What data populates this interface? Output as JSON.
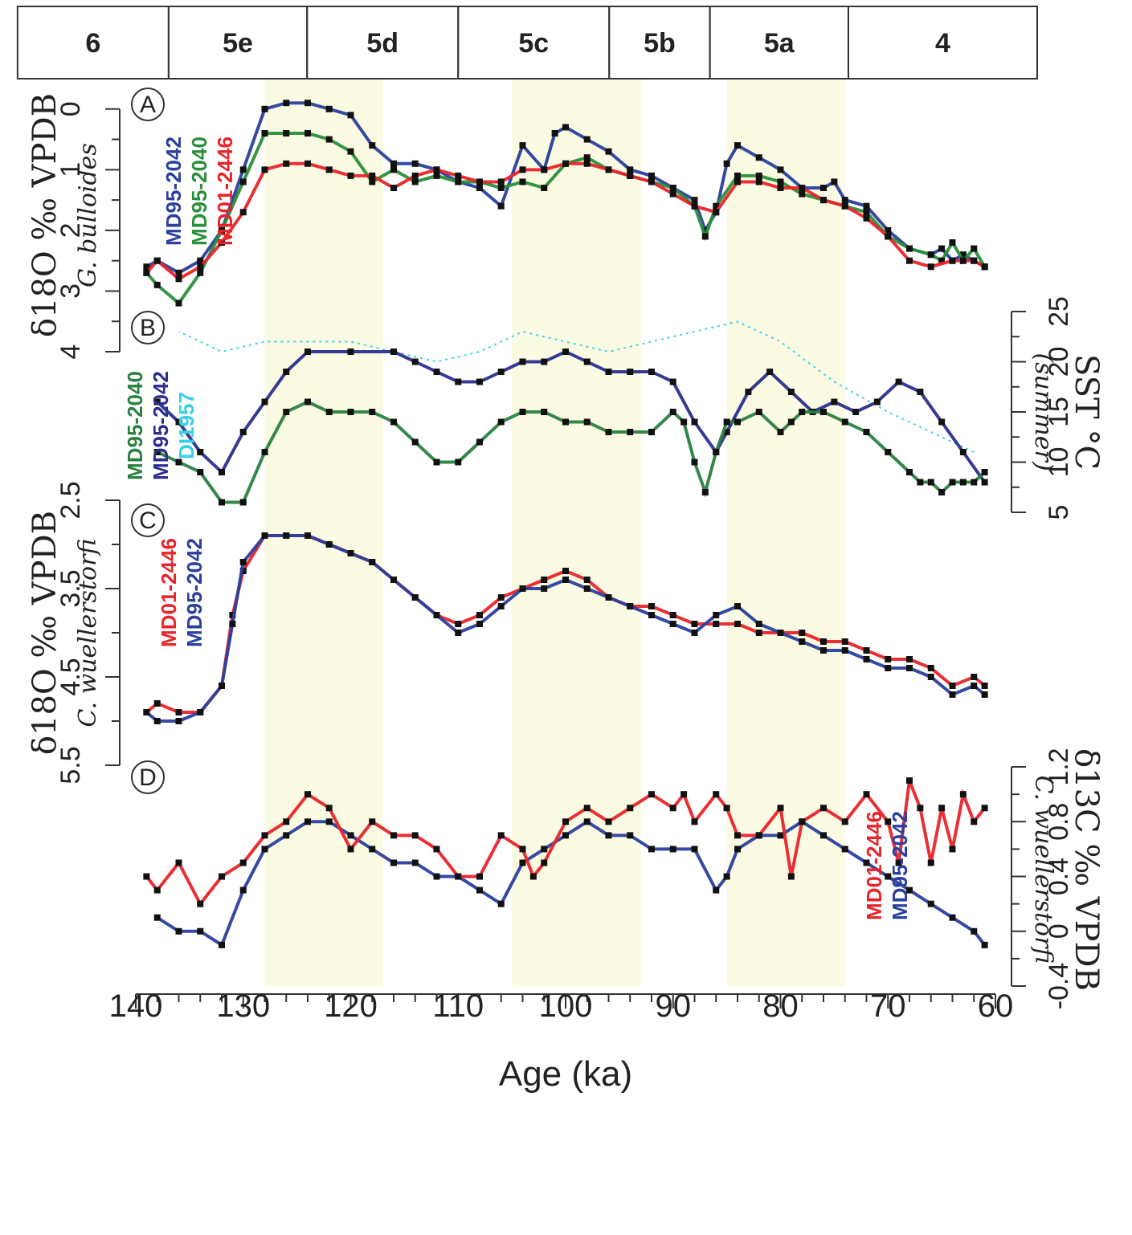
{
  "chart_data": {
    "type": "line",
    "shared_x": {
      "label": "Age (ka)",
      "ticks": [
        60,
        70,
        80,
        90,
        100,
        110,
        120,
        130,
        140
      ],
      "range": [
        60,
        140
      ]
    },
    "marine_isotope_stages": [
      {
        "label": "4",
        "from": 59,
        "to": 74,
        "shaded": false
      },
      {
        "label": "5a",
        "from": 74,
        "to": 85,
        "shaded": true
      },
      {
        "label": "5b",
        "from": 85,
        "to": 93,
        "shaded": false
      },
      {
        "label": "5c",
        "from": 93,
        "to": 105,
        "shaded": true
      },
      {
        "label": "5d",
        "from": 105,
        "to": 117,
        "shaded": false
      },
      {
        "label": "5e",
        "from": 117,
        "to": 128,
        "shaded": true
      },
      {
        "label": "6",
        "from": 128,
        "to": 140,
        "shaded": false
      }
    ],
    "panels": [
      {
        "id": "A",
        "ylabel": "δ18O ‰ VPDB",
        "ylabel_sub": "G. bulloides",
        "ylim": [
          4,
          -0.5
        ],
        "yticks": [
          0,
          1,
          2,
          3,
          4
        ],
        "series": [
          {
            "name": "MD95-2042",
            "color": "#2a3f9e",
            "x": [
              61,
              62,
              63,
              64,
              65,
              66,
              68,
              70,
              72,
              74,
              75,
              76,
              78,
              80,
              82,
              84,
              85,
              86,
              87,
              88,
              90,
              92,
              94,
              96,
              98,
              100,
              101,
              102,
              104,
              106,
              108,
              110,
              112,
              114,
              116,
              118,
              120,
              122,
              124,
              126,
              128,
              130,
              132,
              134,
              136,
              138,
              139
            ],
            "values": [
              2.6,
              2.5,
              2.4,
              2.5,
              2.3,
              2.4,
              2.3,
              2.0,
              1.6,
              1.5,
              1.2,
              1.3,
              1.3,
              1.0,
              0.8,
              0.6,
              0.9,
              1.7,
              2.0,
              1.5,
              1.3,
              1.1,
              1.0,
              0.7,
              0.5,
              0.3,
              0.4,
              1.0,
              0.6,
              1.6,
              1.3,
              1.2,
              1.0,
              0.9,
              0.9,
              0.6,
              0.1,
              0.0,
              -0.1,
              -0.1,
              0.0,
              1.0,
              2.0,
              2.5,
              2.7,
              2.5,
              2.6
            ]
          },
          {
            "name": "MD95-2040",
            "color": "#2a8f3a",
            "x": [
              61,
              62,
              63,
              64,
              65,
              66,
              68,
              70,
              72,
              74,
              76,
              78,
              80,
              82,
              84,
              86,
              87,
              88,
              90,
              92,
              94,
              96,
              98,
              100,
              102,
              104,
              106,
              108,
              110,
              112,
              114,
              116,
              118,
              120,
              122,
              124,
              126,
              128,
              130,
              132,
              134,
              136,
              138,
              139
            ],
            "values": [
              2.6,
              2.3,
              2.5,
              2.2,
              2.5,
              2.4,
              2.3,
              2.1,
              1.7,
              1.6,
              1.5,
              1.4,
              1.2,
              1.1,
              1.1,
              1.6,
              2.1,
              1.6,
              1.3,
              1.2,
              1.1,
              1.0,
              0.8,
              0.9,
              1.3,
              1.2,
              1.3,
              1.2,
              1.2,
              1.1,
              1.2,
              1.0,
              1.2,
              0.7,
              0.5,
              0.4,
              0.4,
              0.4,
              1.2,
              2.0,
              2.7,
              3.2,
              2.9,
              2.7
            ]
          },
          {
            "name": "MD01-2446",
            "color": "#e8242a",
            "x": [
              61,
              62,
              63,
              64,
              66,
              68,
              70,
              72,
              74,
              76,
              78,
              80,
              82,
              84,
              86,
              88,
              90,
              92,
              94,
              96,
              98,
              100,
              102,
              104,
              106,
              108,
              110,
              112,
              114,
              116,
              118,
              120,
              122,
              124,
              126,
              128,
              130,
              132,
              134,
              136,
              138,
              139
            ],
            "values": [
              2.6,
              2.5,
              2.5,
              2.5,
              2.6,
              2.5,
              2.1,
              1.8,
              1.6,
              1.5,
              1.3,
              1.3,
              1.2,
              1.2,
              1.7,
              1.6,
              1.4,
              1.2,
              1.1,
              1.0,
              0.9,
              0.9,
              1.0,
              1.0,
              1.2,
              1.2,
              1.1,
              1.0,
              1.1,
              1.3,
              1.1,
              1.1,
              1.0,
              0.9,
              0.9,
              1.0,
              1.7,
              2.2,
              2.6,
              2.8,
              2.5,
              2.7
            ]
          }
        ]
      },
      {
        "id": "B",
        "ylabel": "SST °C",
        "ylabel_sub": "(summer)",
        "ylim": [
          5,
          25
        ],
        "yticks": [
          5,
          10,
          15,
          20,
          25
        ],
        "series": [
          {
            "name": "DI1957",
            "color": "#35d0e8",
            "x": [
              62,
              66,
              70,
              75,
              80,
              84,
              88,
              92,
              96,
              100,
              104,
              108,
              112,
              116,
              120,
              124,
              128,
              132,
              136
            ],
            "values": [
              11,
              13,
              15,
              18,
              22,
              24,
              23,
              22,
              21,
              22,
              23,
              21,
              20,
              21,
              22,
              22,
              22,
              21,
              23
            ]
          },
          {
            "name": "MD95-2042",
            "color": "#2a2f8e",
            "x": [
              61,
              63,
              65,
              67,
              69,
              71,
              73,
              75,
              77,
              79,
              81,
              83,
              85,
              86,
              88,
              90,
              92,
              94,
              96,
              98,
              100,
              102,
              104,
              106,
              108,
              110,
              112,
              114,
              116,
              120,
              124,
              126,
              128,
              130,
              132,
              134,
              136,
              138
            ],
            "values": [
              8,
              11,
              14,
              17,
              18,
              16,
              15,
              16,
              15,
              17,
              19,
              17,
              13,
              11,
              14,
              18,
              19,
              19,
              19,
              20,
              21,
              20,
              20,
              19,
              18,
              18,
              19,
              20,
              21,
              21,
              21,
              19,
              16,
              13,
              9,
              11,
              14,
              16
            ]
          },
          {
            "name": "MD95-2040",
            "color": "#2a8040",
            "x": [
              61,
              62,
              63,
              64,
              65,
              66,
              67,
              68,
              70,
              72,
              74,
              76,
              78,
              79,
              80,
              82,
              84,
              85,
              86,
              87,
              88,
              89,
              90,
              92,
              94,
              96,
              98,
              100,
              102,
              104,
              106,
              108,
              110,
              112,
              114,
              116,
              118,
              120,
              122,
              124,
              126,
              128,
              130,
              132,
              134,
              136,
              138
            ],
            "values": [
              9,
              8,
              8,
              8,
              7,
              8,
              8,
              9,
              11,
              13,
              14,
              15,
              15,
              14,
              13,
              15,
              14,
              14,
              11,
              7,
              10,
              14,
              15,
              13,
              13,
              13,
              14,
              14,
              15,
              15,
              14,
              12,
              10,
              10,
              12,
              14,
              15,
              15,
              15,
              16,
              15,
              11,
              6,
              6,
              9,
              10,
              11
            ]
          }
        ]
      },
      {
        "id": "C",
        "ylabel": "δ18O ‰ VPDB",
        "ylabel_sub": "C. wuellerstorfi",
        "ylim": [
          5.5,
          2.5
        ],
        "yticks": [
          2.5,
          3.5,
          4.5,
          5.5
        ],
        "series": [
          {
            "name": "MD01-2446",
            "color": "#e8242a",
            "x": [
              61,
              62,
              64,
              66,
              68,
              70,
              72,
              74,
              76,
              78,
              80,
              82,
              84,
              86,
              88,
              90,
              92,
              94,
              96,
              98,
              100,
              102,
              104,
              106,
              108,
              110,
              112,
              114,
              116,
              118,
              120,
              122,
              124,
              126,
              128,
              130,
              131,
              132,
              134,
              136,
              138,
              139
            ],
            "values": [
              4.6,
              4.5,
              4.6,
              4.4,
              4.3,
              4.3,
              4.2,
              4.1,
              4.1,
              4.0,
              4.0,
              4.0,
              3.9,
              3.9,
              3.9,
              3.8,
              3.7,
              3.7,
              3.6,
              3.4,
              3.3,
              3.4,
              3.5,
              3.6,
              3.8,
              3.9,
              3.8,
              3.6,
              3.4,
              3.2,
              3.1,
              3.0,
              2.9,
              2.9,
              2.9,
              3.3,
              3.8,
              4.6,
              4.9,
              4.9,
              4.8,
              4.9
            ]
          },
          {
            "name": "MD95-2042",
            "color": "#2a3f9e",
            "x": [
              61,
              62,
              64,
              66,
              68,
              70,
              72,
              74,
              76,
              78,
              80,
              82,
              84,
              86,
              88,
              90,
              92,
              94,
              96,
              98,
              100,
              102,
              104,
              106,
              108,
              110,
              112,
              114,
              116,
              118,
              120,
              122,
              124,
              126,
              128,
              130,
              131,
              132,
              134,
              136,
              138,
              139
            ],
            "values": [
              4.7,
              4.6,
              4.7,
              4.5,
              4.4,
              4.4,
              4.3,
              4.2,
              4.2,
              4.1,
              4.0,
              3.9,
              3.7,
              3.8,
              4.0,
              3.9,
              3.8,
              3.7,
              3.6,
              3.5,
              3.4,
              3.5,
              3.5,
              3.7,
              3.9,
              4.0,
              3.8,
              3.6,
              3.4,
              3.2,
              3.1,
              3.0,
              2.9,
              2.9,
              2.9,
              3.2,
              3.9,
              4.6,
              4.9,
              5.0,
              5.0,
              4.9
            ]
          }
        ]
      },
      {
        "id": "D",
        "ylabel": "δ13C ‰ VPDB",
        "ylabel_sub": "C. wuellerstorfi",
        "ylim": [
          -0.4,
          1.3
        ],
        "yticks": [
          -0.4,
          0,
          0.4,
          0.8,
          1.2
        ],
        "series": [
          {
            "name": "MD95-2042",
            "color": "#2a3f9e",
            "x": [
              61,
              62,
              64,
              66,
              68,
              70,
              72,
              74,
              76,
              78,
              80,
              82,
              84,
              85,
              86,
              88,
              90,
              92,
              94,
              96,
              98,
              100,
              102,
              104,
              106,
              108,
              110,
              112,
              114,
              116,
              118,
              120,
              122,
              124,
              126,
              128,
              130,
              132,
              134,
              136,
              138
            ],
            "values": [
              -0.1,
              0.0,
              0.1,
              0.2,
              0.3,
              0.4,
              0.5,
              0.6,
              0.7,
              0.8,
              0.7,
              0.7,
              0.6,
              0.4,
              0.3,
              0.6,
              0.6,
              0.6,
              0.7,
              0.7,
              0.8,
              0.7,
              0.6,
              0.5,
              0.2,
              0.3,
              0.4,
              0.4,
              0.5,
              0.5,
              0.6,
              0.7,
              0.8,
              0.8,
              0.7,
              0.6,
              0.3,
              -0.1,
              0.0,
              0.0,
              0.1
            ]
          },
          {
            "name": "MD01-2446",
            "color": "#e8242a",
            "x": [
              61,
              62,
              63,
              64,
              65,
              66,
              67,
              68,
              69,
              70,
              72,
              74,
              76,
              78,
              79,
              80,
              82,
              84,
              85,
              86,
              88,
              89,
              90,
              92,
              94,
              96,
              98,
              100,
              102,
              103,
              104,
              106,
              108,
              110,
              112,
              114,
              116,
              118,
              120,
              122,
              124,
              126,
              128,
              130,
              132,
              134,
              136,
              138,
              139
            ],
            "values": [
              0.9,
              0.8,
              1.0,
              0.6,
              0.9,
              0.5,
              0.9,
              1.1,
              0.5,
              0.8,
              1.0,
              0.8,
              0.9,
              0.8,
              0.4,
              0.9,
              0.7,
              0.7,
              0.9,
              1.0,
              0.8,
              1.0,
              0.9,
              1.0,
              0.9,
              0.8,
              0.9,
              0.8,
              0.5,
              0.4,
              0.6,
              0.7,
              0.4,
              0.4,
              0.6,
              0.7,
              0.7,
              0.8,
              0.6,
              0.9,
              1.0,
              0.8,
              0.7,
              0.5,
              0.4,
              0.2,
              0.5,
              0.3,
              0.4
            ]
          }
        ]
      }
    ]
  }
}
